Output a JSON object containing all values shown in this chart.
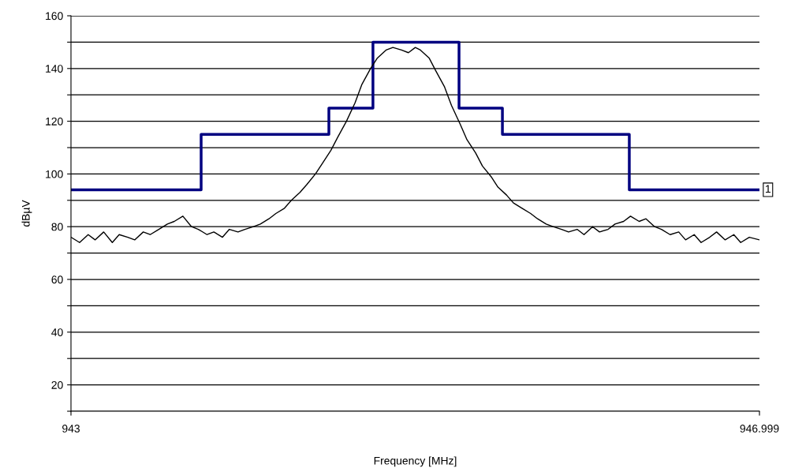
{
  "chart_data": {
    "type": "line",
    "xlabel": "Frequency [MHz]",
    "ylabel": "dBµV",
    "xlim": [
      943,
      946.999
    ],
    "xticks": [
      943,
      946.999
    ],
    "ylim": [
      10,
      160
    ],
    "yticks": [
      {
        "value": 10,
        "label": null
      },
      20,
      {
        "value": 30,
        "label": null
      },
      40,
      {
        "value": 50,
        "label": null
      },
      60,
      {
        "value": 70,
        "label": null
      },
      80,
      {
        "value": 90,
        "label": null
      },
      100,
      {
        "value": 110,
        "label": null
      },
      120,
      {
        "value": 130,
        "label": null
      },
      140,
      {
        "value": 150,
        "label": null
      },
      160
    ],
    "grid": "y",
    "legend": false,
    "annotations": [
      {
        "text": "1",
        "x": 946.999,
        "y": 94
      }
    ],
    "series": [
      {
        "type": "step",
        "color": "#000080",
        "x": [
          943,
          943.756,
          944.498,
          944.754,
          945.254,
          945.506,
          946.243,
          946.999
        ],
        "values": [
          94,
          115,
          125,
          150,
          125,
          115,
          94,
          94
        ]
      },
      {
        "color": "#000000",
        "x": [
          943,
          943.05,
          943.1,
          943.14,
          943.19,
          943.24,
          943.28,
          943.33,
          943.37,
          943.42,
          943.46,
          943.51,
          943.56,
          943.6,
          943.65,
          943.7,
          943.74,
          943.79,
          943.83,
          943.88,
          943.92,
          943.97,
          944.01,
          944.06,
          944.1,
          944.15,
          944.19,
          944.24,
          944.28,
          944.33,
          944.37,
          944.42,
          944.46,
          944.51,
          944.55,
          944.6,
          944.65,
          944.69,
          944.74,
          944.78,
          944.83,
          944.87,
          944.92,
          944.96,
          945.0,
          945.03,
          945.08,
          945.12,
          945.17,
          945.21,
          945.26,
          945.3,
          945.35,
          945.39,
          945.44,
          945.48,
          945.53,
          945.57,
          945.62,
          945.67,
          945.71,
          945.76,
          945.8,
          945.85,
          945.89,
          945.94,
          945.98,
          946.03,
          946.07,
          946.12,
          946.16,
          946.21,
          946.25,
          946.3,
          946.34,
          946.39,
          946.43,
          946.48,
          946.53,
          946.57,
          946.62,
          946.66,
          946.71,
          946.75,
          946.8,
          946.85,
          946.89,
          946.94,
          946.999
        ],
        "values": [
          76,
          74,
          77,
          75,
          78,
          74,
          77,
          76,
          75,
          78,
          77,
          79,
          81,
          82,
          84,
          80,
          79,
          77,
          78,
          76,
          79,
          78,
          79,
          80,
          81,
          83,
          85,
          87,
          90,
          93,
          96,
          100,
          104,
          109,
          114,
          120,
          127,
          134,
          140,
          144,
          147,
          148,
          147,
          146,
          148,
          147,
          144,
          139,
          133,
          126,
          119,
          113,
          108,
          103,
          99,
          95,
          92,
          89,
          87,
          85,
          83,
          81,
          80,
          79,
          78,
          79,
          77,
          80,
          78,
          79,
          81,
          82,
          84,
          82,
          83,
          80,
          79,
          77,
          78,
          75,
          77,
          74,
          76,
          78,
          75,
          77,
          74,
          76,
          75
        ]
      }
    ]
  }
}
